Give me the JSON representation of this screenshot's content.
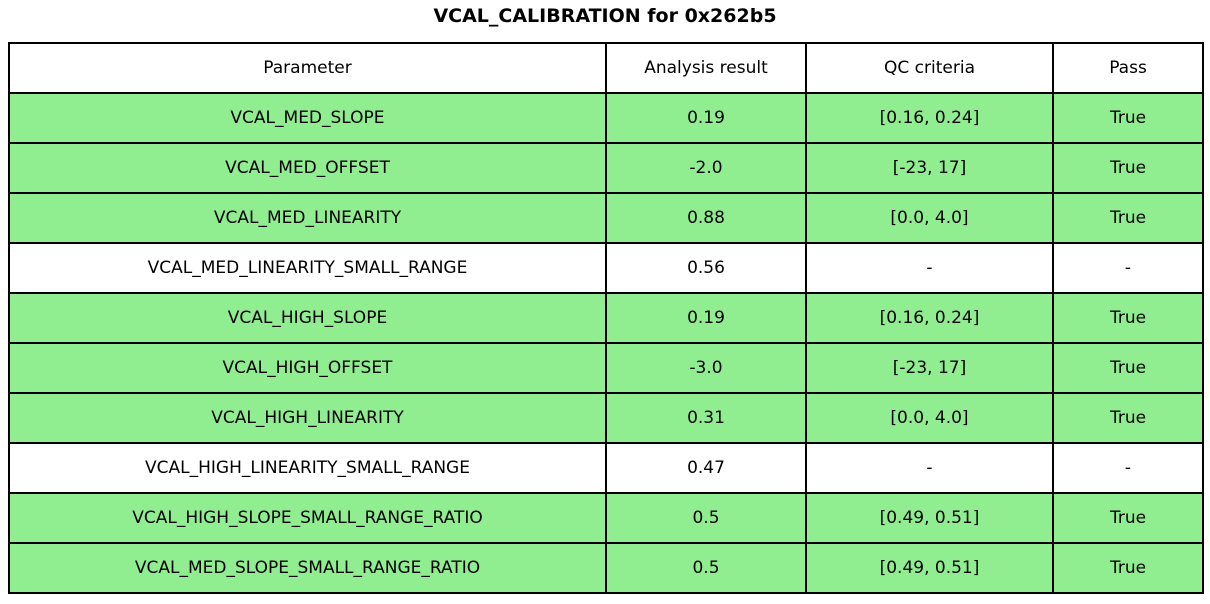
{
  "title": "VCAL_CALIBRATION for 0x262b5",
  "colors": {
    "pass_row_bg": "#90EE90",
    "neutral_row_bg": "#FFFFFF",
    "border": "#000000",
    "text": "#000000",
    "page_bg": "#FFFFFF"
  },
  "chart_data": {
    "type": "table",
    "title": "VCAL_CALIBRATION for 0x262b5",
    "columns": [
      "Parameter",
      "Analysis result",
      "QC criteria",
      "Pass"
    ],
    "rows": [
      [
        "VCAL_MED_SLOPE",
        "0.19",
        "[0.16, 0.24]",
        "True"
      ],
      [
        "VCAL_MED_OFFSET",
        "-2.0",
        "[-23, 17]",
        "True"
      ],
      [
        "VCAL_MED_LINEARITY",
        "0.88",
        "[0.0, 4.0]",
        "True"
      ],
      [
        "VCAL_MED_LINEARITY_SMALL_RANGE",
        "0.56",
        "-",
        "-"
      ],
      [
        "VCAL_HIGH_SLOPE",
        "0.19",
        "[0.16, 0.24]",
        "True"
      ],
      [
        "VCAL_HIGH_OFFSET",
        "-3.0",
        "[-23, 17]",
        "True"
      ],
      [
        "VCAL_HIGH_LINEARITY",
        "0.31",
        "[0.0, 4.0]",
        "True"
      ],
      [
        "VCAL_HIGH_LINEARITY_SMALL_RANGE",
        "0.47",
        "-",
        "-"
      ],
      [
        "VCAL_HIGH_SLOPE_SMALL_RANGE_RATIO",
        "0.5",
        "[0.49, 0.51]",
        "True"
      ],
      [
        "VCAL_MED_SLOPE_SMALL_RANGE_RATIO",
        "0.5",
        "[0.49, 0.51]",
        "True"
      ]
    ],
    "layout": {
      "legend": "none",
      "grid": "full-cell-borders",
      "row_highlight_rule": "rows with Pass == True are green; rows without QC criteria are white"
    }
  }
}
